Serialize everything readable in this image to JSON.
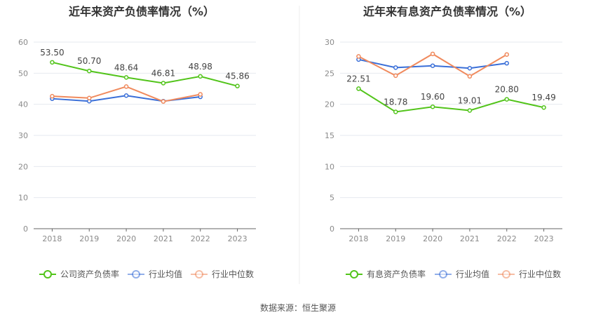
{
  "source_label": "数据来源：恒生聚源",
  "chart_data": [
    {
      "type": "line",
      "title": "近年来资产负债率情况（%）",
      "categories": [
        "2018",
        "2019",
        "2020",
        "2021",
        "2022",
        "2023"
      ],
      "ylim": [
        0,
        60
      ],
      "yticks": [
        0,
        10,
        20,
        30,
        40,
        50,
        60
      ],
      "grid": true,
      "legend_position": "bottom",
      "series": [
        {
          "name": "公司资产负债率",
          "color": "#52c41a",
          "values": [
            53.5,
            50.7,
            48.64,
            46.81,
            48.98,
            45.86
          ],
          "labels": [
            "53.50",
            "50.70",
            "48.64",
            "46.81",
            "48.98",
            "45.86"
          ]
        },
        {
          "name": "行业均值",
          "color": "#3a6fd8",
          "values": [
            41.8,
            41.0,
            42.8,
            41.0,
            42.4,
            null
          ]
        },
        {
          "name": "行业中位数",
          "color": "#f08a5d",
          "values": [
            42.6,
            42.0,
            45.7,
            40.9,
            43.2,
            null
          ]
        }
      ]
    },
    {
      "type": "line",
      "title": "近年来有息资产负债率情况（%）",
      "categories": [
        "2018",
        "2019",
        "2020",
        "2021",
        "2022",
        "2023"
      ],
      "ylim": [
        0,
        30
      ],
      "yticks": [
        0,
        5,
        10,
        15,
        20,
        25,
        30
      ],
      "grid": true,
      "legend_position": "bottom",
      "series": [
        {
          "name": "有息资产负债率",
          "color": "#52c41a",
          "values": [
            22.51,
            18.78,
            19.6,
            19.01,
            20.8,
            19.49
          ],
          "labels": [
            "22.51",
            "18.78",
            "19.60",
            "19.01",
            "20.80",
            "19.49"
          ]
        },
        {
          "name": "行业均值",
          "color": "#3a6fd8",
          "values": [
            27.2,
            25.9,
            26.2,
            25.8,
            26.6,
            null
          ]
        },
        {
          "name": "行业中位数",
          "color": "#f08a5d",
          "values": [
            27.7,
            24.6,
            28.1,
            24.5,
            28.0,
            null
          ]
        }
      ]
    }
  ]
}
